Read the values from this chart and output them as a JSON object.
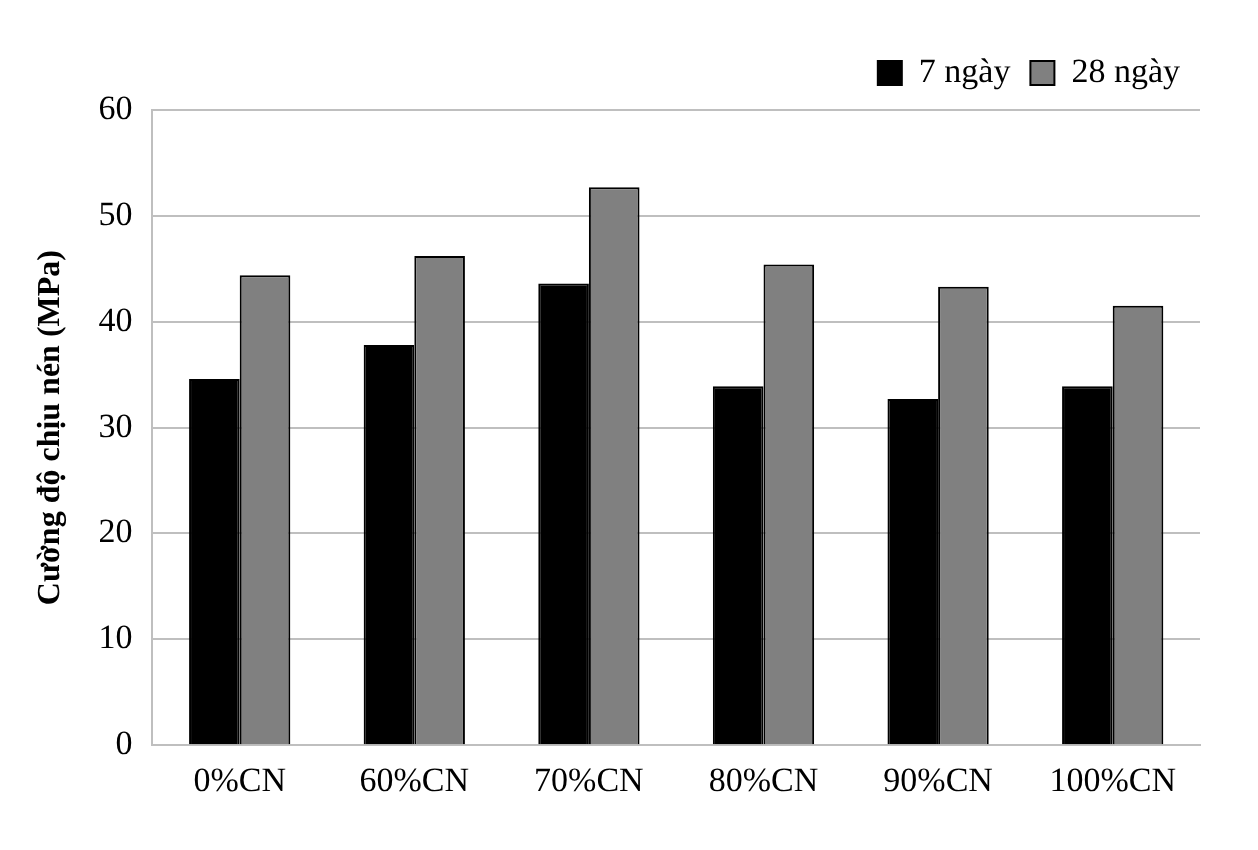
{
  "chart_data": {
    "type": "bar",
    "ylabel": "Cường độ chịu nén (MPa)",
    "categories": [
      "0%CN",
      "60%CN",
      "70%CN",
      "80%CN",
      "90%CN",
      "100%CN"
    ],
    "series": [
      {
        "name": "7 ngày",
        "color": "#000000",
        "values": [
          34.6,
          37.8,
          43.6,
          33.9,
          32.7,
          33.9
        ]
      },
      {
        "name": "28 ngày",
        "color": "#808080",
        "values": [
          44.4,
          46.2,
          52.7,
          45.4,
          43.3,
          41.5
        ]
      }
    ],
    "ylim": [
      0,
      60
    ],
    "yticks": [
      0,
      10,
      20,
      30,
      40,
      50,
      60
    ],
    "grid": "y",
    "legend": "top right"
  }
}
